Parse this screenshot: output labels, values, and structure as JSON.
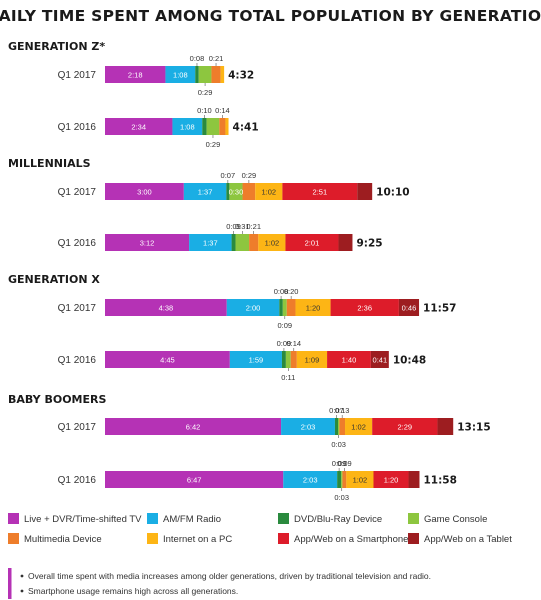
{
  "chart_data": {
    "type": "bar",
    "orientation": "horizontal",
    "stacked": true,
    "title": "DAILY TIME SPENT AMONG TOTAL POPULATION  BY GENERATION",
    "value_unit": "hh:mm",
    "series": [
      {
        "name": "Live + DVR/Time-shifted TV",
        "color": "#b532b5"
      },
      {
        "name": "AM/FM Radio",
        "color": "#1aaee4"
      },
      {
        "name": "DVD/Blu-Ray Device",
        "color": "#2a8a3e"
      },
      {
        "name": "Game Console",
        "color": "#8dc63f"
      },
      {
        "name": "Multimedia Device",
        "color": "#ee7d2b"
      },
      {
        "name": "Internet on a PC",
        "color": "#fdb515"
      },
      {
        "name": "App/Web on a Smartphone",
        "color": "#dd1c2a"
      },
      {
        "name": "App/Web on a Tablet",
        "color": "#9d1d20"
      }
    ],
    "groups": [
      {
        "name": "GENERATION Z*",
        "rows": [
          {
            "label": "Q1 2017",
            "total": "4:32",
            "values": [
              "2:18",
              "1:08",
              "0:08",
              "0:29",
              "0:21",
              "0:08",
              "",
              ""
            ]
          },
          {
            "label": "Q1 2016",
            "total": "4:41",
            "values": [
              "2:34",
              "1:08",
              "0:10",
              "0:29",
              "0:14",
              "0:07",
              "",
              ""
            ]
          }
        ]
      },
      {
        "name": "MILLENNIALS",
        "rows": [
          {
            "label": "Q1 2017",
            "total": "10:10",
            "values": [
              "3:00",
              "1:37",
              "0:07",
              "0:30",
              "0:29",
              "1:02",
              "2:51",
              "0:34"
            ]
          },
          {
            "label": "Q1 2016",
            "total": "9:25",
            "values": [
              "3:12",
              "1:37",
              "0:09",
              "0:31",
              "0:21",
              "1:02",
              "2:01",
              "0:32"
            ]
          }
        ]
      },
      {
        "name": "GENERATION X",
        "rows": [
          {
            "label": "Q1 2017",
            "total": "11:57",
            "values": [
              "4:38",
              "2:00",
              "0:08",
              "0:09",
              "0:20",
              "1:20",
              "2:36",
              "0:46"
            ]
          },
          {
            "label": "Q1 2016",
            "total": "10:48",
            "values": [
              "4:45",
              "1:59",
              "0:09",
              "0:11",
              "0:14",
              "1:09",
              "1:40",
              "0:41"
            ]
          }
        ]
      },
      {
        "name": "BABY BOOMERS",
        "rows": [
          {
            "label": "Q1 2017",
            "total": "13:15",
            "values": [
              "6:42",
              "2:03",
              "0:07",
              "0:03",
              "0:13",
              "1:02",
              "2:29",
              "0:36"
            ]
          },
          {
            "label": "Q1 2016",
            "total": "11:58",
            "values": [
              "6:47",
              "2:03",
              "0:09",
              "0:03",
              "0:09",
              "1:02",
              "1:20",
              "0:25"
            ]
          }
        ]
      }
    ],
    "notes": [
      "Overall time spent with media increases among older generations, driven by traditional television and radio.",
      "Smartphone usage remains high across all generations."
    ]
  }
}
